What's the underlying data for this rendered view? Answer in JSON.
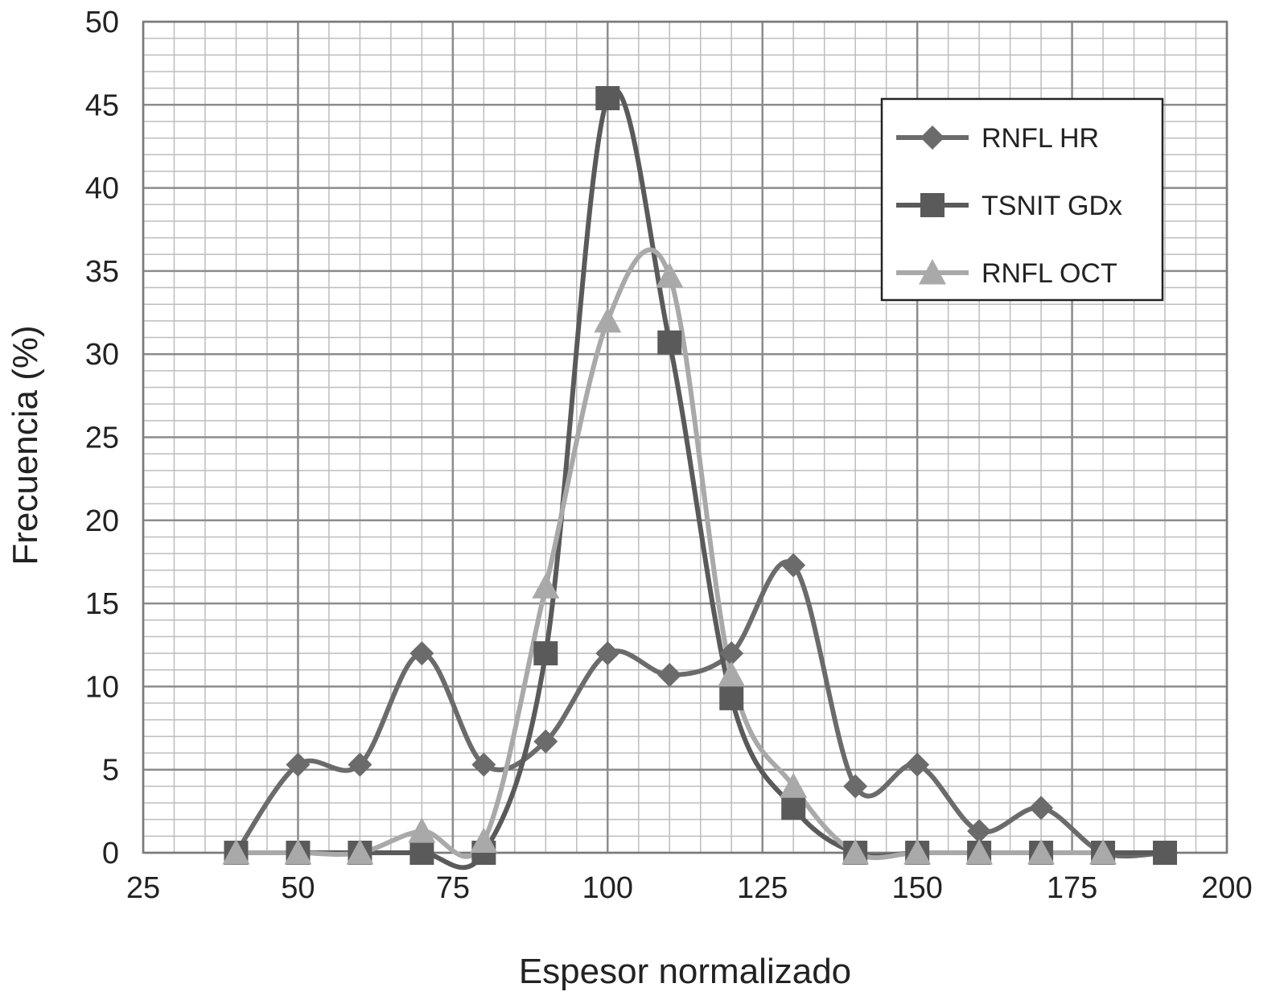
{
  "chart_data": {
    "type": "line",
    "title": "",
    "xlabel": "Espesor normalizado",
    "ylabel": "Frecuencia (%)",
    "xlim": [
      25,
      200
    ],
    "ylim": [
      0,
      50
    ],
    "x_ticks": [
      "25",
      "50",
      "75",
      "100",
      "125",
      "150",
      "175",
      "200"
    ],
    "y_ticks": [
      "0",
      "5",
      "10",
      "15",
      "20",
      "25",
      "30",
      "35",
      "40",
      "45",
      "50"
    ],
    "grid": true,
    "legend_position": "top-right",
    "x": [
      40,
      50,
      60,
      70,
      80,
      90,
      100,
      110,
      120,
      130,
      140,
      150,
      160,
      170,
      180,
      190
    ],
    "series": [
      {
        "name": "RNFL HR",
        "marker": "diamond",
        "color": "#6b6b6b",
        "values": [
          0,
          5.3,
          5.3,
          12,
          5.3,
          6.7,
          12,
          10.7,
          12,
          17.3,
          4,
          5.3,
          1.3,
          2.7,
          0,
          0
        ]
      },
      {
        "name": "TSNIT GDx",
        "marker": "square",
        "color": "#5a5a5a",
        "values": [
          0,
          0,
          0,
          0,
          0,
          12,
          45.4,
          30.7,
          9.3,
          2.7,
          0,
          0,
          0,
          0,
          0,
          0
        ]
      },
      {
        "name": "RNFL OCT",
        "marker": "triangle",
        "color": "#a9a9a9",
        "values": [
          0,
          0,
          0,
          1.3,
          0.7,
          16,
          32,
          34.7,
          10.7,
          4,
          0,
          0,
          0,
          0,
          0,
          null
        ]
      }
    ]
  }
}
